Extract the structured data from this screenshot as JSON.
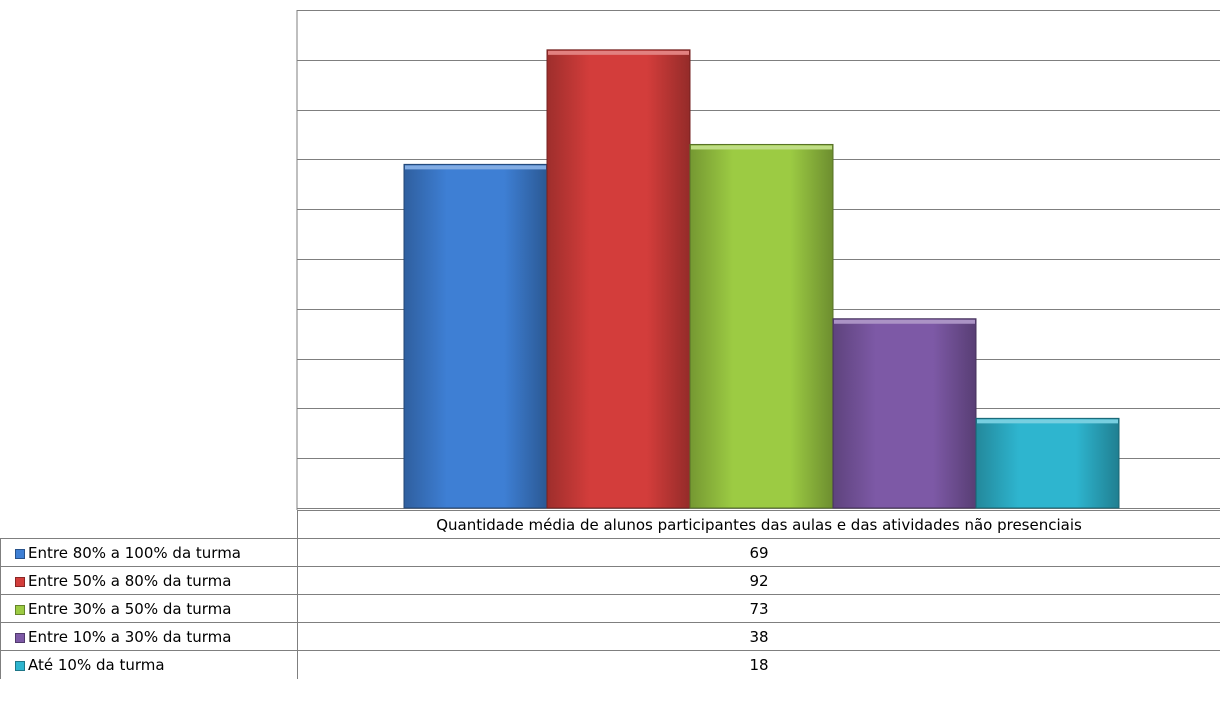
{
  "chart_data": {
    "type": "bar",
    "category": "Quantidade média de alunos participantes das aulas e das atividades não presenciais",
    "series": [
      {
        "name": "Entre 80% a 100% da turma",
        "value": 69,
        "color": "#3e7fd4"
      },
      {
        "name": "Entre 50% a 80% da turma",
        "value": 92,
        "color": "#d33d3b"
      },
      {
        "name": "Entre 30% a 50% da turma",
        "value": 73,
        "color": "#9ccb43"
      },
      {
        "name": "Entre 10% a 30% da turma",
        "value": 38,
        "color": "#7d59a6"
      },
      {
        "name": "Até 10% da turma",
        "value": 18,
        "color": "#2eb5cf"
      }
    ],
    "ylim": [
      0,
      100
    ],
    "y_major_unit": 10,
    "y_tick_labels_visible": false,
    "grid": true,
    "legend": "data-table"
  }
}
